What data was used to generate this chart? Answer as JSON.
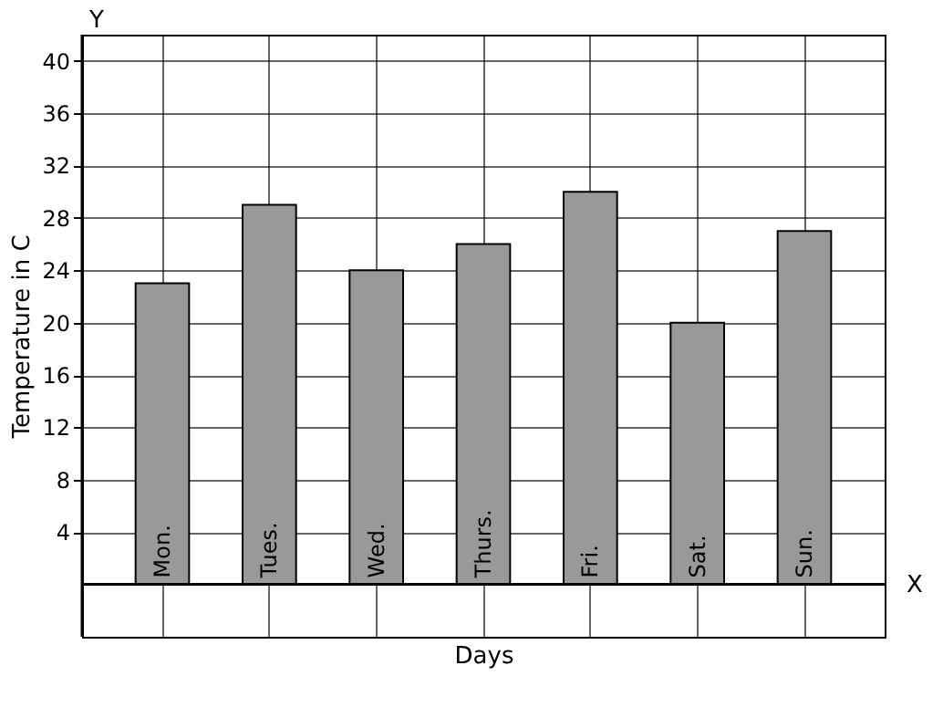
{
  "chart_data": {
    "type": "bar",
    "categories": [
      "Mon.",
      "Tues.",
      "Wed.",
      "Thurs.",
      "Fri.",
      "Sat.",
      "Sun."
    ],
    "values": [
      23,
      29,
      24,
      26,
      30,
      20,
      27
    ],
    "color": "#999999",
    "xlabel": "Days",
    "ylabel": "Temperature in C",
    "ylim": [
      -4,
      42
    ],
    "yticks": [
      4,
      8,
      12,
      16,
      20,
      24,
      28,
      32,
      36,
      40
    ],
    "grid": true,
    "tick_labels": "y",
    "annotations": [
      "Y",
      "X"
    ]
  }
}
